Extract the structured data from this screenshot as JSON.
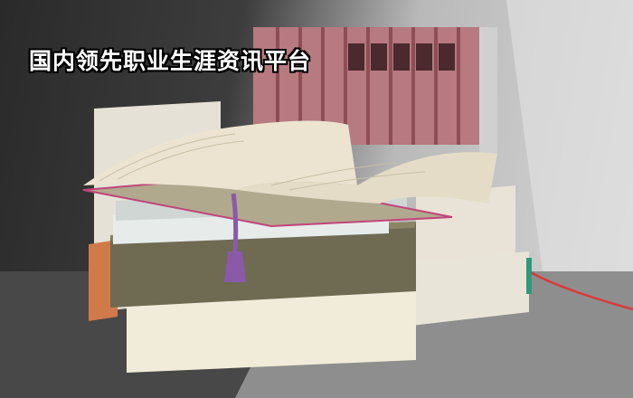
{
  "banner": {
    "headline": "国内领先职业生涯资讯平台"
  },
  "photo": {
    "subject-icon": "stack-of-books-photo-icon",
    "colors": {
      "shadow": "#2e2e2e",
      "wall-light": "#d6d6d6",
      "book-spines": "#b8787c",
      "open-book-pages": "#ece4d0",
      "olive-book": "#6f6a52",
      "cream-book": "#f1ecd9",
      "tassel": "#8a5aa8",
      "red-ribbon": "#d93a3a"
    }
  }
}
